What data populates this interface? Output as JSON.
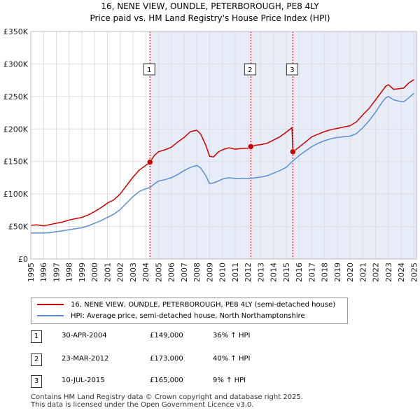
{
  "title_line1": "16, NENE VIEW, OUNDLE, PETERBOROUGH, PE8 4LY",
  "title_line2": "Price paid vs. HM Land Registry's House Price Index (HPI)",
  "chart_data": {
    "type": "line",
    "x_range": [
      1995.0,
      2025.2
    ],
    "ylim": [
      0,
      350000
    ],
    "y_ticks": [
      0,
      50000,
      100000,
      150000,
      200000,
      250000,
      300000,
      350000
    ],
    "y_tick_labels": [
      "£0",
      "£50K",
      "£100K",
      "£150K",
      "£200K",
      "£250K",
      "£300K",
      "£350K"
    ],
    "x_ticks": [
      "1995",
      "1996",
      "1997",
      "1998",
      "1999",
      "2000",
      "2001",
      "2002",
      "2003",
      "2004",
      "2005",
      "2006",
      "2007",
      "2008",
      "2009",
      "2010",
      "2011",
      "2012",
      "2013",
      "2014",
      "2015",
      "2016",
      "2017",
      "2018",
      "2019",
      "2020",
      "2021",
      "2022",
      "2023",
      "2024",
      "2025"
    ],
    "grid": true,
    "shaded_regions": [
      [
        2004.33,
        2025.2
      ]
    ],
    "series": [
      {
        "name": "16, NENE VIEW, OUNDLE, PETERBOROUGH, PE8 4LY (semi-detached house)",
        "color": "#cc0000",
        "points": [
          [
            1995.0,
            52000
          ],
          [
            1995.5,
            52500
          ],
          [
            1996.0,
            51000
          ],
          [
            1996.5,
            53000
          ],
          [
            1997.0,
            55000
          ],
          [
            1997.5,
            57000
          ],
          [
            1998.0,
            60000
          ],
          [
            1998.5,
            62000
          ],
          [
            1999.0,
            64000
          ],
          [
            1999.5,
            68000
          ],
          [
            2000.0,
            73000
          ],
          [
            2000.5,
            79000
          ],
          [
            2001.0,
            86000
          ],
          [
            2001.5,
            91000
          ],
          [
            2002.0,
            100000
          ],
          [
            2002.5,
            113000
          ],
          [
            2003.0,
            126000
          ],
          [
            2003.5,
            137000
          ],
          [
            2004.0,
            144000
          ],
          [
            2004.33,
            149000
          ],
          [
            2004.7,
            160000
          ],
          [
            2005.0,
            165000
          ],
          [
            2005.5,
            168000
          ],
          [
            2006.0,
            172000
          ],
          [
            2006.5,
            180000
          ],
          [
            2007.0,
            187000
          ],
          [
            2007.5,
            196000
          ],
          [
            2008.0,
            198000
          ],
          [
            2008.3,
            192000
          ],
          [
            2008.7,
            175000
          ],
          [
            2009.0,
            158000
          ],
          [
            2009.3,
            157000
          ],
          [
            2009.7,
            165000
          ],
          [
            2010.0,
            168000
          ],
          [
            2010.5,
            171000
          ],
          [
            2011.0,
            169000
          ],
          [
            2011.5,
            170000
          ],
          [
            2012.0,
            170500
          ],
          [
            2012.23,
            173000
          ],
          [
            2012.6,
            175000
          ],
          [
            2013.0,
            176000
          ],
          [
            2013.5,
            178000
          ],
          [
            2014.0,
            183000
          ],
          [
            2014.5,
            188000
          ],
          [
            2015.0,
            195000
          ],
          [
            2015.45,
            202000
          ],
          [
            2015.52,
            165000
          ],
          [
            2016.0,
            172000
          ],
          [
            2016.5,
            180000
          ],
          [
            2017.0,
            188000
          ],
          [
            2017.5,
            192000
          ],
          [
            2018.0,
            196000
          ],
          [
            2018.5,
            199000
          ],
          [
            2019.0,
            201000
          ],
          [
            2019.5,
            203000
          ],
          [
            2020.0,
            205000
          ],
          [
            2020.5,
            211000
          ],
          [
            2021.0,
            222000
          ],
          [
            2021.5,
            232000
          ],
          [
            2022.0,
            245000
          ],
          [
            2022.5,
            258000
          ],
          [
            2022.8,
            266000
          ],
          [
            2023.0,
            268000
          ],
          [
            2023.4,
            261000
          ],
          [
            2023.8,
            262000
          ],
          [
            2024.2,
            263000
          ],
          [
            2024.6,
            271000
          ],
          [
            2025.0,
            276000
          ]
        ]
      },
      {
        "name": "HPI: Average price, semi-detached house, North Northamptonshire",
        "color": "#5b8fd0",
        "points": [
          [
            1995.0,
            40000
          ],
          [
            1995.5,
            40000
          ],
          [
            1996.0,
            40000
          ],
          [
            1996.5,
            40500
          ],
          [
            1997.0,
            42000
          ],
          [
            1997.5,
            43500
          ],
          [
            1998.0,
            45000
          ],
          [
            1998.5,
            46500
          ],
          [
            1999.0,
            48000
          ],
          [
            1999.5,
            51000
          ],
          [
            2000.0,
            55000
          ],
          [
            2000.5,
            59000
          ],
          [
            2001.0,
            64000
          ],
          [
            2001.5,
            69000
          ],
          [
            2002.0,
            76000
          ],
          [
            2002.5,
            86000
          ],
          [
            2003.0,
            96000
          ],
          [
            2003.5,
            104000
          ],
          [
            2004.0,
            108000
          ],
          [
            2004.33,
            110000
          ],
          [
            2004.7,
            116000
          ],
          [
            2005.0,
            120000
          ],
          [
            2005.5,
            122000
          ],
          [
            2006.0,
            125000
          ],
          [
            2006.5,
            130000
          ],
          [
            2007.0,
            136000
          ],
          [
            2007.5,
            141000
          ],
          [
            2008.0,
            144000
          ],
          [
            2008.3,
            140000
          ],
          [
            2008.7,
            128000
          ],
          [
            2009.0,
            116000
          ],
          [
            2009.3,
            117000
          ],
          [
            2009.7,
            120000
          ],
          [
            2010.0,
            123000
          ],
          [
            2010.5,
            125000
          ],
          [
            2011.0,
            124000
          ],
          [
            2011.5,
            124000
          ],
          [
            2012.0,
            123500
          ],
          [
            2012.23,
            124000
          ],
          [
            2012.6,
            125000
          ],
          [
            2013.0,
            126000
          ],
          [
            2013.5,
            128000
          ],
          [
            2014.0,
            132000
          ],
          [
            2014.5,
            136000
          ],
          [
            2015.0,
            141000
          ],
          [
            2015.52,
            151000
          ],
          [
            2016.0,
            159000
          ],
          [
            2016.5,
            166000
          ],
          [
            2017.0,
            173000
          ],
          [
            2017.5,
            178000
          ],
          [
            2018.0,
            182000
          ],
          [
            2018.5,
            185000
          ],
          [
            2019.0,
            187000
          ],
          [
            2019.5,
            188000
          ],
          [
            2020.0,
            189000
          ],
          [
            2020.5,
            193000
          ],
          [
            2021.0,
            202000
          ],
          [
            2021.5,
            213000
          ],
          [
            2022.0,
            226000
          ],
          [
            2022.5,
            241000
          ],
          [
            2022.8,
            248000
          ],
          [
            2023.0,
            250000
          ],
          [
            2023.4,
            245000
          ],
          [
            2023.8,
            243000
          ],
          [
            2024.2,
            242000
          ],
          [
            2024.6,
            248000
          ],
          [
            2025.0,
            255000
          ]
        ]
      }
    ],
    "sales": [
      {
        "label": "1",
        "x": 2004.33,
        "value": 149000
      },
      {
        "label": "2",
        "x": 2012.23,
        "value": 173000
      },
      {
        "label": "3",
        "x": 2015.52,
        "value": 165000
      }
    ]
  },
  "legend": {
    "property_label": "16, NENE VIEW, OUNDLE, PETERBOROUGH, PE8 4LY (semi-detached house)",
    "hpi_label": "HPI: Average price, semi-detached house, North Northamptonshire"
  },
  "sales_table": [
    {
      "num": "1",
      "date": "30-APR-2004",
      "price": "£149,000",
      "hpi": "36% ↑ HPI"
    },
    {
      "num": "2",
      "date": "23-MAR-2012",
      "price": "£173,000",
      "hpi": "40% ↑ HPI"
    },
    {
      "num": "3",
      "date": "10-JUL-2015",
      "price": "£165,000",
      "hpi": "9% ↑ HPI"
    }
  ],
  "footer": {
    "line1": "Contains HM Land Registry data © Crown copyright and database right 2025.",
    "line2": "This data is licensed under the Open Government Licence v3.0."
  },
  "colors": {
    "property": "#cc0000",
    "hpi": "#5b8fd0",
    "shade": "#e6ecf8",
    "grid": "#dddddd"
  }
}
